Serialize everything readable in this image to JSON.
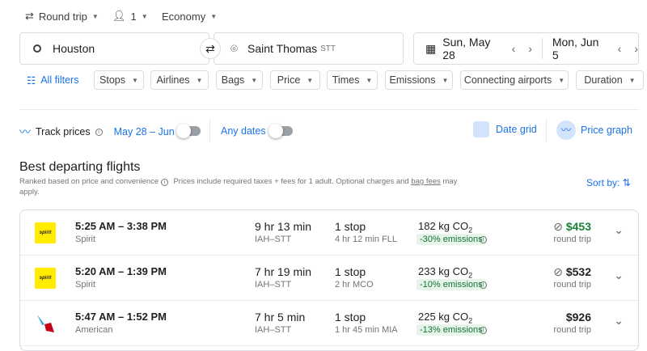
{
  "search": {
    "trip_type": "Round trip",
    "passengers": "1",
    "cabin": "Economy",
    "origin": "Houston",
    "destination": "Saint Thomas",
    "destination_code": "STT",
    "depart_date": "Sun, May 28",
    "return_date": "Mon, Jun 5"
  },
  "filters": {
    "all": "All filters",
    "chips": [
      "Stops",
      "Airlines",
      "Bags",
      "Price",
      "Times",
      "Emissions",
      "Connecting airports",
      "Duration"
    ]
  },
  "tracking": {
    "label": "Track prices",
    "dates": "May 28 – Jun 5",
    "any_dates": "Any dates",
    "date_grid": "Date grid",
    "price_graph": "Price graph"
  },
  "results": {
    "title": "Best departing flights",
    "ranked": "Ranked based on price and convenience",
    "note": "Prices include required taxes + fees for 1 adult. Optional charges and ",
    "bag_fees": "bag fees",
    "note_end": " may",
    "apply": "apply.",
    "sort": "Sort by:"
  },
  "flights": [
    {
      "times": "5:25 AM – 3:38 PM",
      "airline": "Spirit",
      "duration": "9 hr 13 min",
      "route": "IAH–STT",
      "stops": "1 stop",
      "layover": "4 hr 12 min FLL",
      "co2": "182 kg CO",
      "co2_sub": "2",
      "emissions": "-30% emissions",
      "price": "$453",
      "price_type": "round trip",
      "price_color": "#188038",
      "no_bag": true,
      "logo": "spirit"
    },
    {
      "times": "5:20 AM – 1:39 PM",
      "airline": "Spirit",
      "duration": "7 hr 19 min",
      "route": "IAH–STT",
      "stops": "1 stop",
      "layover": "2 hr MCO",
      "co2": "233 kg CO",
      "co2_sub": "2",
      "emissions": "-10% emissions",
      "price": "$532",
      "price_type": "round trip",
      "price_color": "#202124",
      "no_bag": true,
      "logo": "spirit"
    },
    {
      "times": "5:47 AM – 1:52 PM",
      "airline": "American",
      "duration": "7 hr 5 min",
      "route": "IAH–STT",
      "stops": "1 stop",
      "layover": "1 hr 45 min MIA",
      "co2": "225 kg CO",
      "co2_sub": "2",
      "emissions": "-13% emissions",
      "price": "$926",
      "price_type": "round trip",
      "price_color": "#202124",
      "no_bag": false,
      "logo": "american"
    }
  ]
}
